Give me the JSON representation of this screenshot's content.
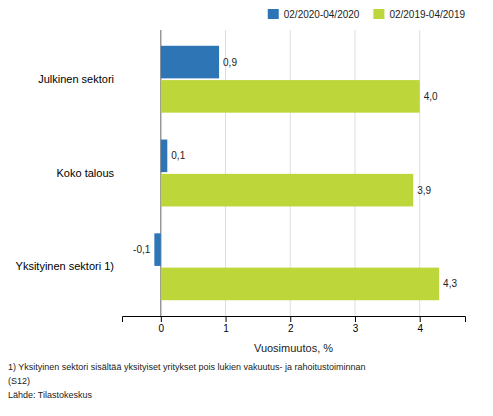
{
  "chart_data": {
    "type": "bar",
    "orientation": "horizontal",
    "xlabel": "Vuosimuutos, %",
    "categories": [
      "Julkinen sektori",
      "Koko talous",
      "Yksityinen sektori 1)"
    ],
    "series": [
      {
        "name": "02/2020-04/2020",
        "color": "#2e75b6",
        "values": [
          0.9,
          0.1,
          -0.1
        ],
        "value_labels": [
          "0,9",
          "0,1",
          "-0,1"
        ]
      },
      {
        "name": "02/2019-04/2019",
        "color": "#bdd63a",
        "values": [
          4.0,
          3.9,
          4.3
        ],
        "value_labels": [
          "4,0",
          "3,9",
          "4,3"
        ]
      }
    ],
    "xlim": [
      -0.6,
      4.7
    ],
    "xticks": [
      0,
      1,
      2,
      3,
      4
    ],
    "grid": true,
    "legend": "top-right",
    "data_labels": true,
    "annotations": [
      "1) Yksityinen sektori sisältää yksityiset yritykset pois lukien vakuutus- ja rahoitustoiminnan",
      "(S12)",
      "Lähde: Tilastokeskus"
    ]
  }
}
